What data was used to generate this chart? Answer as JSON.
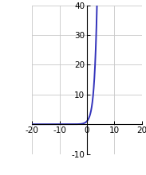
{
  "xlim": [
    -20,
    20
  ],
  "ylim": [
    -10,
    40
  ],
  "xticks": [
    -20,
    -10,
    0,
    10,
    20
  ],
  "yticks": [
    -10,
    10,
    20,
    30,
    40
  ],
  "line_color": "#3333bb",
  "line_width": 1.4,
  "background_color": "#ffffff",
  "grid_color": "#c8c8c8",
  "x_start": -20,
  "x_end": 7.5,
  "figsize": [
    1.83,
    2.2
  ],
  "dpi": 100,
  "tick_fontsize": 7.5
}
